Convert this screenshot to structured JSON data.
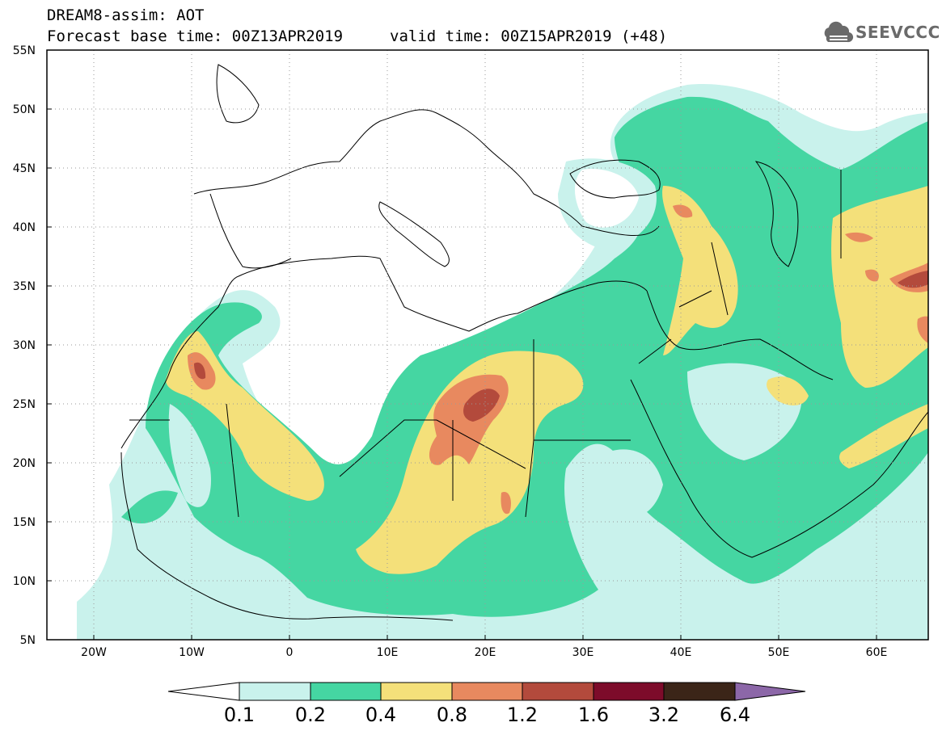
{
  "header": {
    "model_line": "DREAM8-assim: AOT",
    "base_time_line": "Forecast base time: 00Z13APR2019",
    "valid_time_line": "valid time: 00Z15APR2019 (+48)"
  },
  "logo": {
    "text": "SEEVCCC",
    "icon": "cloud-logo-icon"
  },
  "map": {
    "lat_labels": [
      "55N",
      "50N",
      "45N",
      "40N",
      "35N",
      "30N",
      "25N",
      "20N",
      "15N",
      "10N",
      "5N"
    ],
    "lon_labels": [
      "20W",
      "10W",
      "0",
      "10E",
      "20E",
      "30E",
      "40E",
      "50E",
      "60E"
    ],
    "lat_range": [
      5,
      55
    ],
    "lon_range": [
      -25,
      65
    ],
    "grid": "dotted"
  },
  "colorbar": {
    "labels": [
      "0.1",
      "0.2",
      "0.4",
      "0.8",
      "1.2",
      "1.6",
      "3.2",
      "6.4"
    ],
    "colors": [
      "#ffffff",
      "#c9f2ec",
      "#45d6a2",
      "#f4e07a",
      "#e8895f",
      "#b34a3c",
      "#7d0b2a",
      "#3b2518",
      "#8c67a8"
    ]
  },
  "colors": {
    "level1": "#c9f2ec",
    "level2": "#45d6a2",
    "level3": "#f4e07a",
    "level4": "#e8895f",
    "level5": "#b34a3c"
  }
}
